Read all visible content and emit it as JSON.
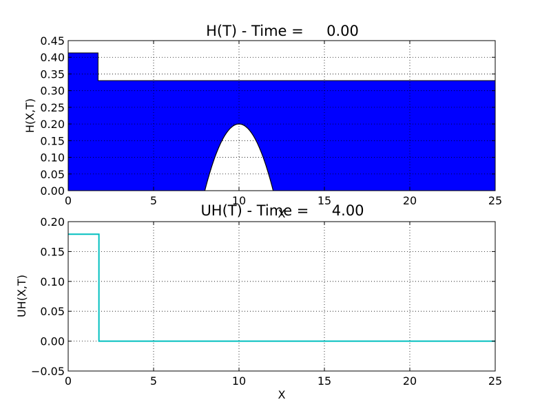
{
  "chart_data": [
    {
      "type": "area",
      "title": "H(T) - Time =     0.00",
      "xlabel": "X",
      "ylabel": "H(X,T)",
      "xlim": [
        0,
        25
      ],
      "ylim": [
        0,
        0.45
      ],
      "xticks": [
        "0",
        "5",
        "10",
        "15",
        "20",
        "25"
      ],
      "yticks": [
        "0.00",
        "0.05",
        "0.10",
        "0.15",
        "0.20",
        "0.25",
        "0.30",
        "0.35",
        "0.40",
        "0.45"
      ],
      "grid": true,
      "fill_color": "#0000ff",
      "surface": {
        "x": [
          0,
          1.75,
          1.75,
          25
        ],
        "y": [
          0.413,
          0.413,
          0.33,
          0.33
        ]
      },
      "bed": {
        "shape": "parabolic-bump",
        "x_start": 8,
        "x_peak": 10,
        "x_end": 12,
        "peak_height": 0.2
      }
    },
    {
      "type": "line",
      "title": "UH(T) - Time =     4.00",
      "xlabel": "X",
      "ylabel": "UH(X,T)",
      "xlim": [
        0,
        25
      ],
      "ylim": [
        -0.05,
        0.2
      ],
      "xticks": [
        "0",
        "5",
        "10",
        "15",
        "20",
        "25"
      ],
      "yticks": [
        "−0.05",
        "0.00",
        "0.05",
        "0.10",
        "0.15",
        "0.20"
      ],
      "grid": true,
      "line_color": "#00bfbf",
      "series": [
        {
          "x": [
            0,
            1.8,
            1.8,
            25
          ],
          "y": [
            0.179,
            0.179,
            0.0,
            0.0
          ]
        }
      ]
    }
  ]
}
